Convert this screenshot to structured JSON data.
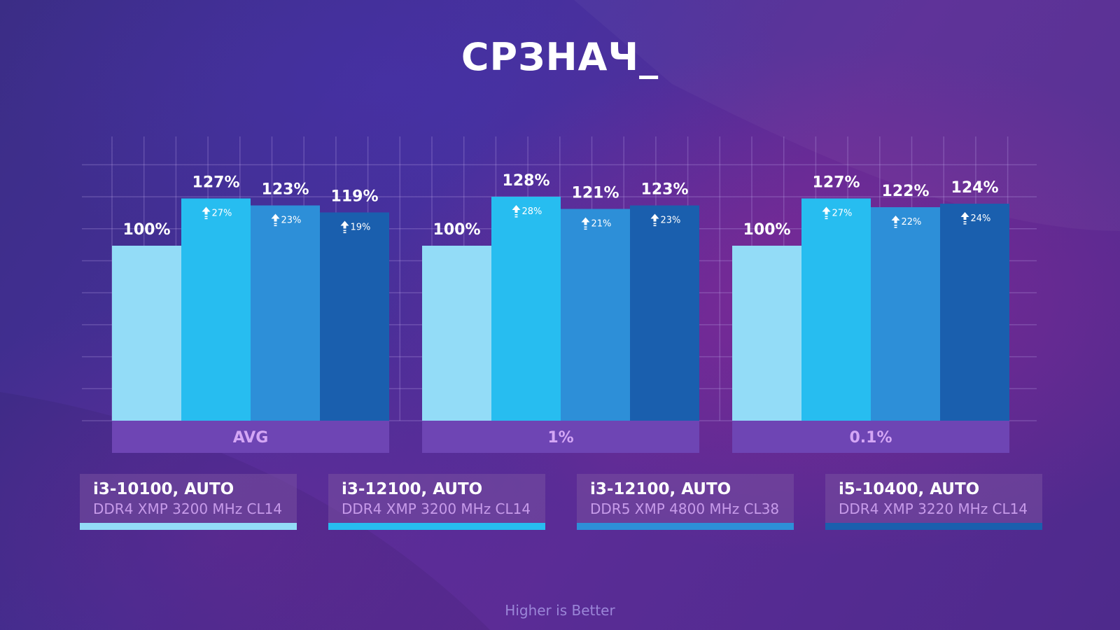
{
  "title": "СРЗНАЧ_",
  "footer": "Higher is Better",
  "colors": [
    "#93dcf7",
    "#27bdf0",
    "#2d8fd8",
    "#1a5fae"
  ],
  "legend": [
    {
      "cpu": "i3-10100, AUTO",
      "memory": "DDR4 XMP 3200 MHz CL14"
    },
    {
      "cpu": "i3-12100, AUTO",
      "memory": "DDR4 XMP 3200 MHz CL14"
    },
    {
      "cpu": "i3-12100, AUTO",
      "memory": "DDR5 XMP 4800 MHz CL38"
    },
    {
      "cpu": "i5-10400, AUTO",
      "memory": "DDR4 XMP 3220 MHz CL14"
    }
  ],
  "chart_data": {
    "type": "bar",
    "title": "СРЗНАЧ_",
    "categories": [
      "AVG",
      "1%",
      "0.1%"
    ],
    "ylim": [
      0,
      145
    ],
    "grid": true,
    "series": [
      {
        "name": "i3-10100, AUTO DDR4 XMP 3200 MHz CL14",
        "values": [
          100,
          100,
          100
        ],
        "labels": [
          "100%",
          "100%",
          "100%"
        ],
        "deltas": [
          "",
          "",
          ""
        ]
      },
      {
        "name": "i3-12100, AUTO DDR4 XMP 3200 MHz CL14",
        "values": [
          127,
          128,
          127
        ],
        "labels": [
          "127%",
          "128%",
          "127%"
        ],
        "deltas": [
          "27%",
          "28%",
          "27%"
        ]
      },
      {
        "name": "i3-12100, AUTO DDR5 XMP 4800 MHz CL38",
        "values": [
          123,
          121,
          122
        ],
        "labels": [
          "123%",
          "121%",
          "122%"
        ],
        "deltas": [
          "23%",
          "21%",
          "22%"
        ]
      },
      {
        "name": "i5-10400, AUTO DDR4 XMP 3220 MHz CL14",
        "values": [
          119,
          123,
          124
        ],
        "labels": [
          "119%",
          "123%",
          "124%"
        ],
        "deltas": [
          "19%",
          "23%",
          "24%"
        ]
      }
    ]
  }
}
